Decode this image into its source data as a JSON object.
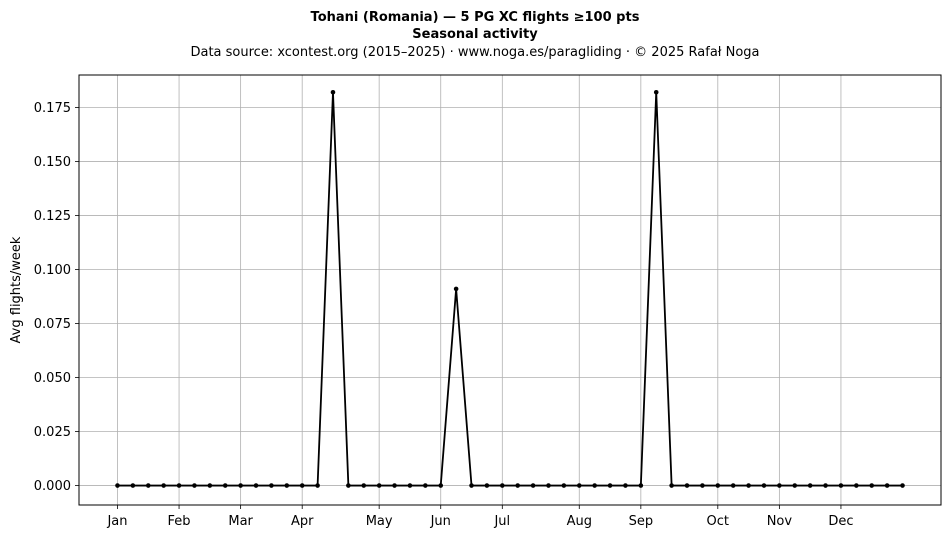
{
  "chart_data": {
    "type": "line",
    "title": "Tohani (Romania)  —  5 PG XC flights ≥100 pts",
    "subtitle": "Seasonal activity",
    "source": "Data source: xcontest.org (2015–2025)  ·  www.noga.es/paragliding  ·  © 2025 Rafał Noga",
    "xlabel": "",
    "ylabel": "Avg flights/week",
    "ylim": [
      -0.009,
      0.19
    ],
    "xlim": [
      -2.5,
      53.5
    ],
    "grid": true,
    "yticks": [
      0.0,
      0.025,
      0.05,
      0.075,
      0.1,
      0.125,
      0.15,
      0.175
    ],
    "ytick_labels": [
      "0.000",
      "0.025",
      "0.050",
      "0.075",
      "0.100",
      "0.125",
      "0.150",
      "0.175"
    ],
    "xticks": [
      0,
      4,
      8,
      12,
      17,
      21,
      25,
      30,
      34,
      39,
      43,
      47
    ],
    "xtick_labels": [
      "Jan",
      "Feb",
      "Mar",
      "Apr",
      "May",
      "Jun",
      "Jul",
      "Aug",
      "Sep",
      "Oct",
      "Nov",
      "Dec"
    ],
    "series": [
      {
        "x": [
          0,
          1,
          2,
          3,
          4,
          5,
          6,
          7,
          8,
          9,
          10,
          11,
          12,
          13,
          14,
          15,
          16,
          17,
          18,
          19,
          20,
          21,
          22,
          23,
          24,
          25,
          26,
          27,
          28,
          29,
          30,
          31,
          32,
          33,
          34,
          35,
          36,
          37,
          38,
          39,
          40,
          41,
          42,
          43,
          44,
          45,
          46,
          47,
          48,
          49,
          50,
          51
        ],
        "y": [
          0,
          0,
          0,
          0,
          0,
          0,
          0,
          0,
          0,
          0,
          0,
          0,
          0,
          0,
          0.182,
          0,
          0,
          0,
          0,
          0,
          0,
          0,
          0.091,
          0,
          0,
          0,
          0,
          0,
          0,
          0,
          0,
          0,
          0,
          0,
          0,
          0.182,
          0,
          0,
          0,
          0,
          0,
          0,
          0,
          0,
          0,
          0,
          0,
          0,
          0,
          0,
          0,
          0
        ],
        "color": "#000000"
      }
    ]
  }
}
